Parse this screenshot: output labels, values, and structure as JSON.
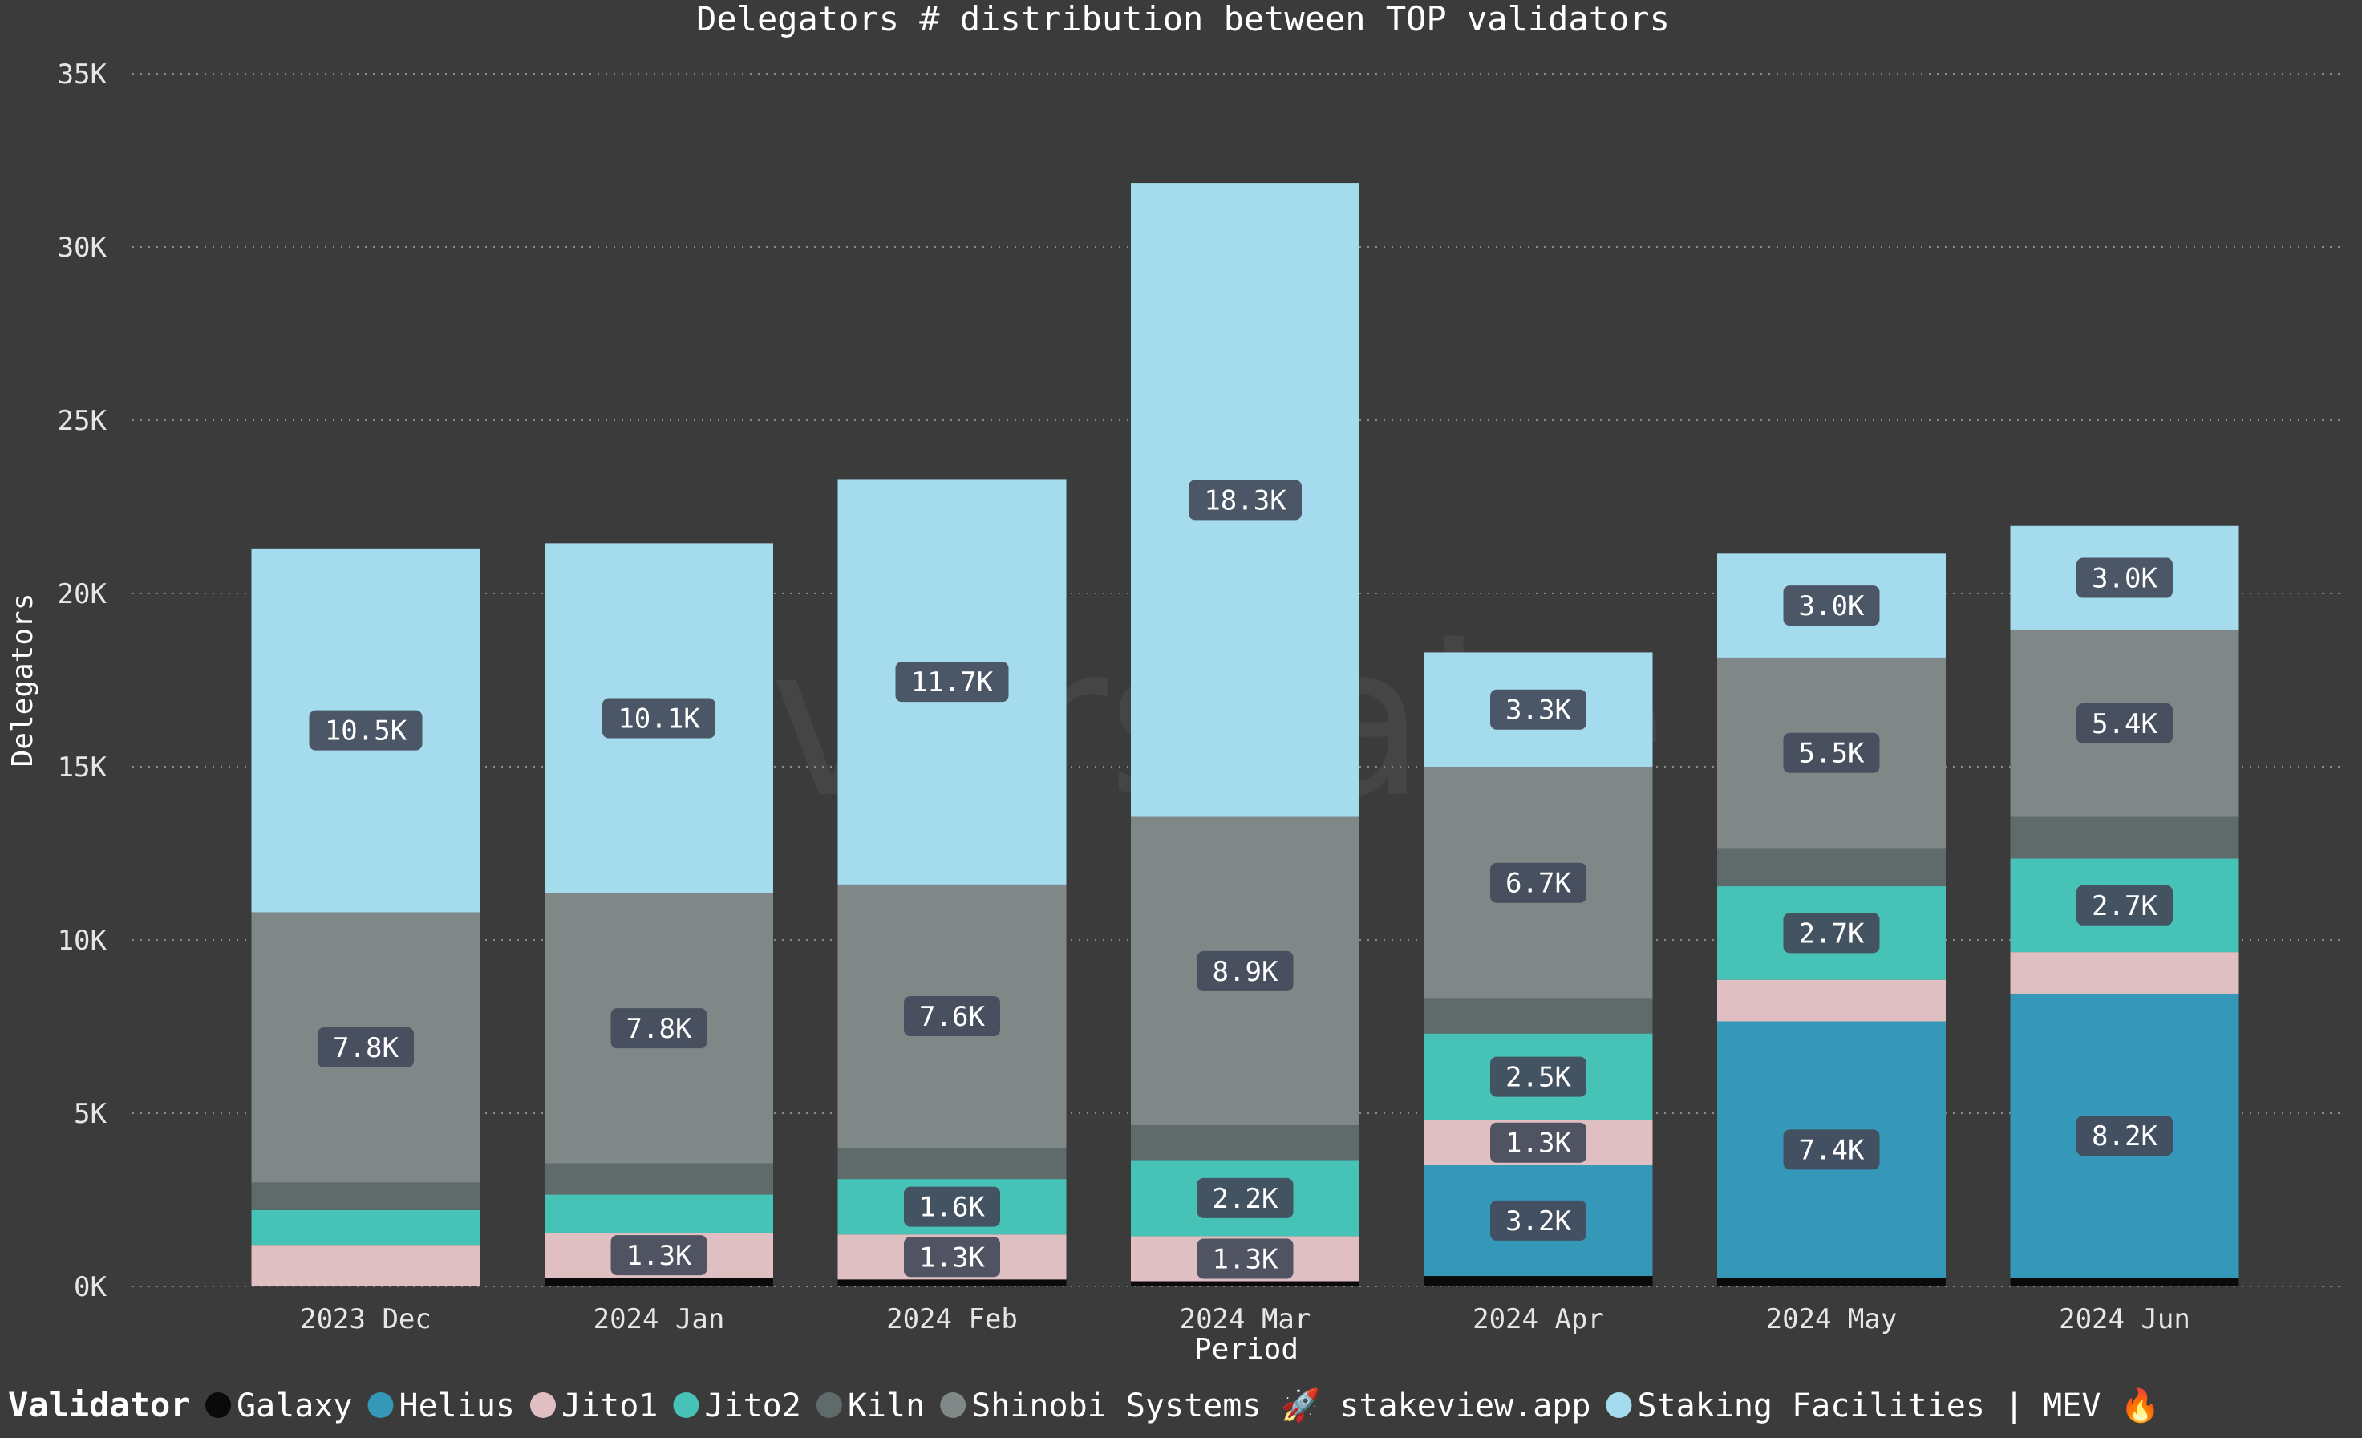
{
  "chart_data": {
    "type": "bar",
    "stacked": true,
    "title": "Delegators # distribution between TOP validators",
    "xlabel": "Period",
    "ylabel": "Delegators",
    "ylim": [
      0,
      35000
    ],
    "yticks": [
      0,
      5000,
      10000,
      15000,
      20000,
      25000,
      30000,
      35000
    ],
    "ytick_labels": [
      "0K",
      "5K",
      "10K",
      "15K",
      "20K",
      "25K",
      "30K",
      "35K"
    ],
    "grid": true,
    "legend_position": "bottom",
    "watermark": "everstake",
    "categories": [
      "2023 Dec",
      "2024 Jan",
      "2024 Feb",
      "2024 Mar",
      "2024 Apr",
      "2024 May",
      "2024 Jun"
    ],
    "series": [
      {
        "name": "Galaxy",
        "color": "#0a0a0a",
        "values": [
          0,
          250,
          200,
          150,
          300,
          250,
          250
        ],
        "labels": [
          "",
          "",
          "",
          "",
          "",
          "",
          ""
        ]
      },
      {
        "name": "Helius",
        "color": "#3598b8",
        "values": [
          0,
          0,
          0,
          0,
          3200,
          7400,
          8200
        ],
        "labels": [
          "",
          "",
          "",
          "",
          "3.2K",
          "7.4K",
          "8.2K"
        ]
      },
      {
        "name": "Jito1",
        "color": "#e0bfc2",
        "values": [
          1200,
          1300,
          1300,
          1300,
          1300,
          1200,
          1200
        ],
        "labels": [
          "",
          "1.3K",
          "1.3K",
          "1.3K",
          "1.3K",
          "",
          ""
        ]
      },
      {
        "name": "Jito2",
        "color": "#47c2b6",
        "values": [
          1000,
          1100,
          1600,
          2200,
          2500,
          2700,
          2700
        ],
        "labels": [
          "",
          "",
          "1.6K",
          "2.2K",
          "2.5K",
          "2.7K",
          "2.7K"
        ]
      },
      {
        "name": "Kiln",
        "color": "#5f6a6b",
        "values": [
          800,
          900,
          900,
          1000,
          1000,
          1100,
          1200
        ],
        "labels": [
          "",
          "",
          "",
          "",
          "",
          "",
          ""
        ]
      },
      {
        "name": "Shinobi Systems 🚀 stakeview.app",
        "color": "#808787",
        "values": [
          7800,
          7800,
          7600,
          8900,
          6700,
          5500,
          5400
        ],
        "labels": [
          "7.8K",
          "7.8K",
          "7.6K",
          "8.9K",
          "6.7K",
          "5.5K",
          "5.4K"
        ]
      },
      {
        "name": "Staking Facilities | MEV 🔥",
        "color": "#a5dced",
        "values": [
          10500,
          10100,
          11700,
          18300,
          3300,
          3000,
          3000
        ],
        "labels": [
          "10.5K",
          "10.1K",
          "11.7K",
          "18.3K",
          "3.3K",
          "3.0K",
          "3.0K"
        ]
      }
    ],
    "legend_title": "Validator"
  }
}
